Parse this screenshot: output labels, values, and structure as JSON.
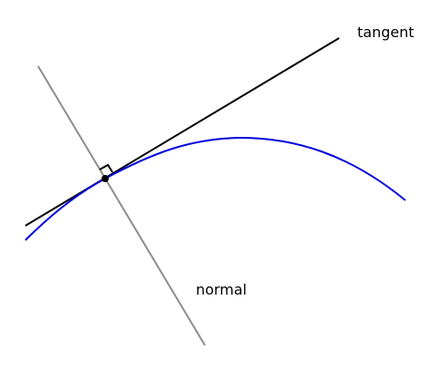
{
  "labels": {
    "tangent": "tangent",
    "normal": "normal"
  },
  "colors": {
    "curve": "#0000dd",
    "tangent": "#000000",
    "normal": "#8c8c8c",
    "point": "#000000",
    "right_angle": "#000000"
  }
}
